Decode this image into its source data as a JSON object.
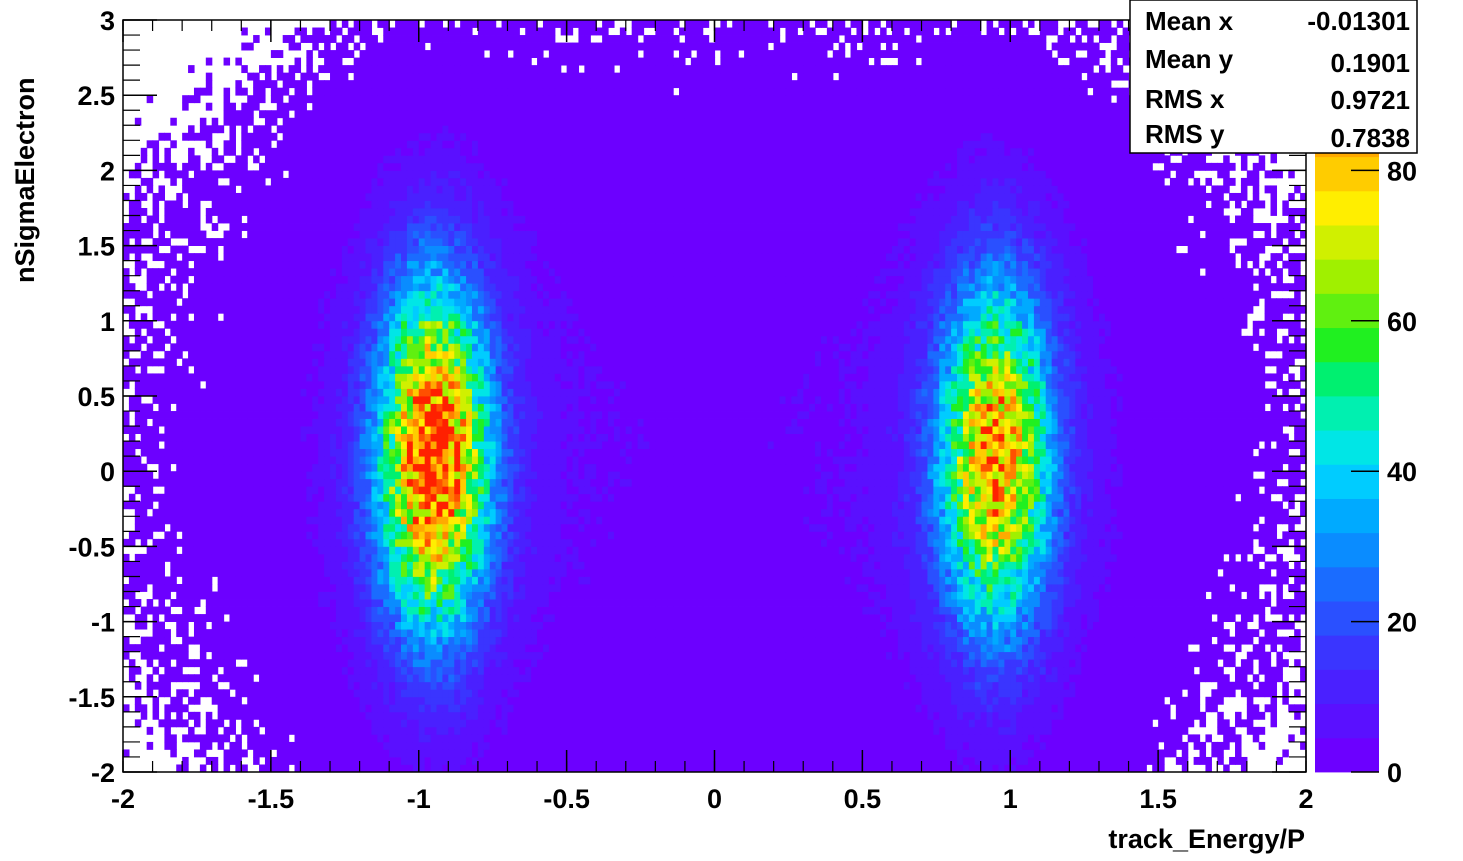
{
  "chart_data": {
    "type": "heatmap",
    "title": "",
    "xlabel": "track_Energy/P",
    "ylabel": "nSigmaElectron",
    "xlim": [
      -2,
      2
    ],
    "ylim": [
      -2,
      3
    ],
    "x_ticks": [
      -2,
      -1.5,
      -1,
      -0.5,
      0,
      0.5,
      1,
      1.5,
      2
    ],
    "y_ticks": [
      -2,
      -1.5,
      -1,
      -0.5,
      0,
      0.5,
      1,
      1.5,
      2,
      2.5,
      3
    ],
    "x_tick_labels": [
      "-2",
      "-1.5",
      "-1",
      "-0.5",
      "0",
      "0.5",
      "1",
      "1.5",
      "2"
    ],
    "y_tick_labels": [
      "-2",
      "-1.5",
      "-1",
      "-0.5",
      "0",
      "0.5",
      "1",
      "1.5",
      "2",
      "2.5",
      "3"
    ],
    "z_range": [
      0,
      100
    ],
    "z_ticks": [
      0,
      20,
      40,
      60,
      80
    ],
    "z_tick_labels": [
      "0",
      "20",
      "40",
      "60",
      "80"
    ],
    "z_top_label_fragment": "0",
    "palette": [
      "#6c00ff",
      "#5a10ff",
      "#4a20ff",
      "#3a35ff",
      "#2a50ff",
      "#1a6cff",
      "#0a8cff",
      "#00aaff",
      "#00ccff",
      "#00e6e6",
      "#00f0b0",
      "#00f070",
      "#20f020",
      "#60f010",
      "#a0f000",
      "#d0f000",
      "#ffee00",
      "#ffcc00",
      "#ffaa00",
      "#ff8000",
      "#ff5000",
      "#ff2000"
    ],
    "components": [
      {
        "x": -0.95,
        "y": 0.1,
        "sx": 0.13,
        "sy": 0.8,
        "peak": 92
      },
      {
        "x": 0.95,
        "y": 0.1,
        "sx": 0.13,
        "sy": 0.8,
        "peak": 78
      }
    ],
    "background_level": 3.5,
    "background_sigma_x": 1.1,
    "background_sigma_y": 1.6,
    "stats": {
      "labels": [
        "Mean x",
        "Mean y",
        "RMS x",
        "RMS y"
      ],
      "values": [
        "-0.01301",
        "0.1901",
        "0.9721",
        "0.7838"
      ]
    }
  }
}
